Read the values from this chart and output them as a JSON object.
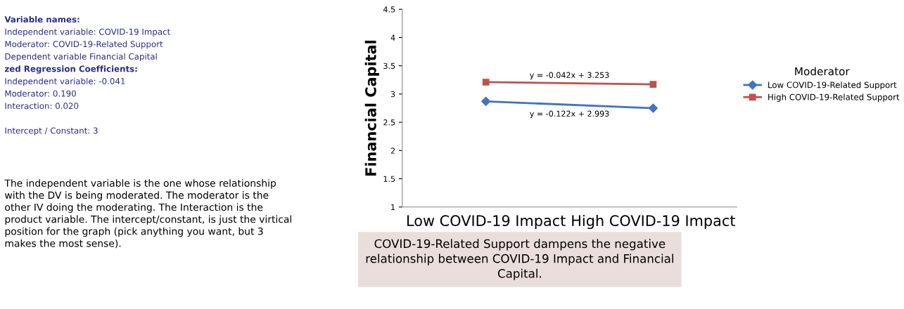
{
  "chart_data": {
    "type": "line",
    "categories": [
      "Low COVID-19 Impact",
      "High COVID-19 Impact"
    ],
    "series": [
      {
        "name": "Low COVID-19-Related Support",
        "color": "#4472c4",
        "marker": "diamond",
        "values": [
          2.87,
          2.75
        ]
      },
      {
        "name": "High COVID-19-Related Support",
        "color": "#c0504d",
        "marker": "square",
        "values": [
          3.21,
          3.17
        ]
      }
    ],
    "ylabel": "Financial Capital",
    "ylim": [
      1,
      4.5
    ],
    "yticks": [
      1,
      1.5,
      2,
      2.5,
      3,
      3.5,
      4,
      4.5
    ],
    "grid": false,
    "legend": "right",
    "legend_title": "Moderator",
    "annotations": [
      "y = -0.042x + 3.253",
      "y = -0.122x + 2.993",
      "Variable names:",
      "Independent variable: COVID-19 Impact",
      "Moderator: COVID-19-Related Support",
      "Dependent variable Financial Capital",
      "zed Regression Coefficients:",
      "Independent variable: -0.041",
      "Moderator: 0.190",
      "Interaction: 0.020",
      "Intercept / Constant: 3",
      "The independent variable is the one whose relationship\nwith the DV is being moderated. The moderator is the\nother IV doing the moderating. The Interaction is the\nproduct variable. The intercept/constant, is just the virtical\nposition for the graph (pick anything you want, but 3\nmakes the most sense).",
      "COVID-19-Related Support dampens the negative\nrelationship between COVID-19 Impact and Financial\nCapital."
    ]
  }
}
